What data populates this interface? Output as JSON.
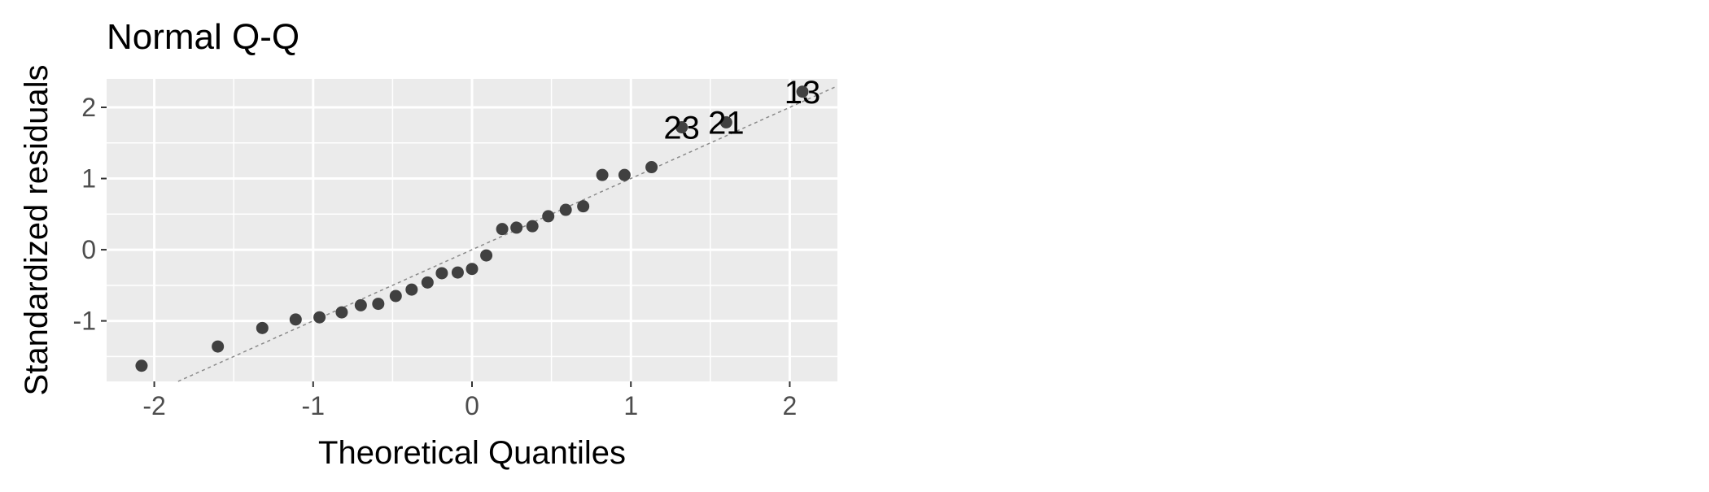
{
  "chart_data": {
    "type": "scatter",
    "title": "Normal Q-Q",
    "xlabel": "Theoretical Quantiles",
    "ylabel": "Standardized residuals",
    "xlim": [
      -2.3,
      2.3
    ],
    "ylim": [
      -1.85,
      2.4
    ],
    "x_ticks": [
      -2,
      -1,
      0,
      1,
      2
    ],
    "x_tick_labels": [
      "-2",
      "-1",
      "0",
      "1",
      "2"
    ],
    "y_ticks": [
      -1,
      0,
      1,
      2
    ],
    "y_tick_labels": [
      "-1",
      "0",
      "1",
      "2"
    ],
    "grid": true,
    "points": [
      {
        "x": -2.08,
        "y": -1.63
      },
      {
        "x": -1.6,
        "y": -1.36
      },
      {
        "x": -1.32,
        "y": -1.1
      },
      {
        "x": -1.11,
        "y": -0.98
      },
      {
        "x": -0.96,
        "y": -0.95
      },
      {
        "x": -0.82,
        "y": -0.88
      },
      {
        "x": -0.7,
        "y": -0.78
      },
      {
        "x": -0.59,
        "y": -0.76
      },
      {
        "x": -0.48,
        "y": -0.65
      },
      {
        "x": -0.38,
        "y": -0.56
      },
      {
        "x": -0.28,
        "y": -0.46
      },
      {
        "x": -0.19,
        "y": -0.33
      },
      {
        "x": -0.09,
        "y": -0.32
      },
      {
        "x": 0.0,
        "y": -0.27
      },
      {
        "x": 0.09,
        "y": -0.08
      },
      {
        "x": 0.19,
        "y": 0.29
      },
      {
        "x": 0.28,
        "y": 0.31
      },
      {
        "x": 0.38,
        "y": 0.33
      },
      {
        "x": 0.48,
        "y": 0.47
      },
      {
        "x": 0.59,
        "y": 0.56
      },
      {
        "x": 0.7,
        "y": 0.61
      },
      {
        "x": 0.82,
        "y": 1.05
      },
      {
        "x": 0.96,
        "y": 1.05
      },
      {
        "x": 1.13,
        "y": 1.16
      },
      {
        "x": 1.32,
        "y": 1.72
      },
      {
        "x": 1.6,
        "y": 1.79
      },
      {
        "x": 2.08,
        "y": 2.22
      }
    ],
    "labeled_points": [
      {
        "label": "23",
        "x": 1.32,
        "y": 1.72
      },
      {
        "label": "21",
        "x": 1.6,
        "y": 1.79
      },
      {
        "label": "13",
        "x": 2.08,
        "y": 2.22
      }
    ],
    "reference_line": {
      "slope": 1.0,
      "intercept": 0.0
    },
    "colors": {
      "panel": "#EBEBEB",
      "grid": "#FFFFFF",
      "points": "#404040",
      "reference_line": "#8A8A8A",
      "tick_text": "#4D4D4D",
      "text": "#000000"
    }
  }
}
